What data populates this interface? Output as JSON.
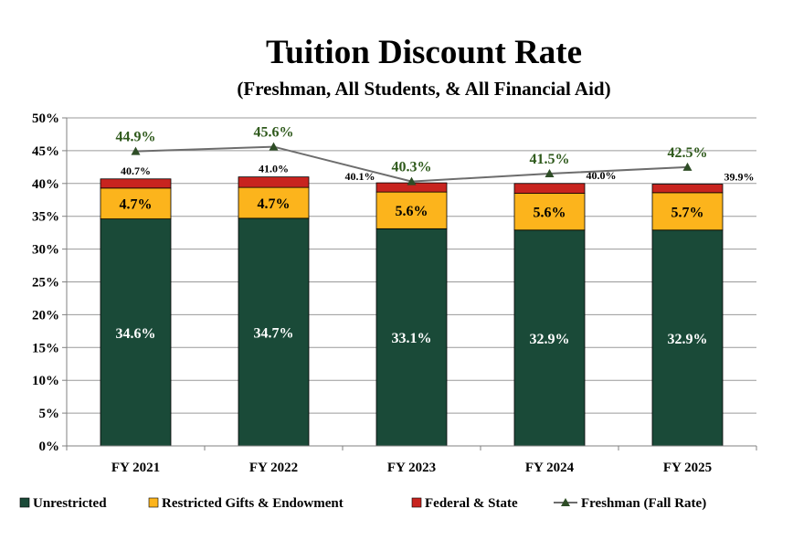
{
  "chart_data": {
    "type": "bar",
    "stacked": true,
    "title": "Tuition Discount Rate",
    "subtitle": "(Freshman, All Students, & All Financial Aid)",
    "categories": [
      "FY 2021",
      "FY 2022",
      "FY 2023",
      "FY 2024",
      "FY 2025"
    ],
    "ylim": [
      0,
      50
    ],
    "yticks": [
      "0%",
      "5%",
      "10%",
      "15%",
      "20%",
      "25%",
      "30%",
      "35%",
      "40%",
      "45%",
      "50%"
    ],
    "grid": true,
    "legend_position": "bottom",
    "series": [
      {
        "name": "Unrestricted",
        "color": "#1a4a38",
        "label_color": "#ffffff",
        "values": [
          34.6,
          34.7,
          33.1,
          32.9,
          32.9
        ],
        "labels": [
          "34.6%",
          "34.7%",
          "33.1%",
          "32.9%",
          "32.9%"
        ]
      },
      {
        "name": "Restricted Gifts & Endowment",
        "color": "#fcb41c",
        "label_color": "#000000",
        "values": [
          4.7,
          4.7,
          5.6,
          5.6,
          5.7
        ],
        "labels": [
          "4.7%",
          "4.7%",
          "5.6%",
          "5.6%",
          "5.7%"
        ]
      },
      {
        "name": "Federal & State",
        "color": "#c8241f",
        "values": [
          1.4,
          1.6,
          1.4,
          1.5,
          1.3
        ]
      }
    ],
    "totals": {
      "values": [
        40.7,
        41.0,
        40.1,
        40.0,
        39.9
      ],
      "labels": [
        "40.7%",
        "41.0%",
        "40.1%",
        "40.0%",
        "39.9%"
      ]
    },
    "line_series": {
      "name": "Freshman (Fall Rate)",
      "type": "line",
      "line_color": "#6d6d6d",
      "marker_color": "#2e4d26",
      "label_color": "#2f5a1c",
      "values": [
        44.9,
        45.6,
        40.3,
        41.5,
        42.5
      ],
      "labels": [
        "44.9%",
        "45.6%",
        "40.3%",
        "41.5%",
        "42.5%"
      ]
    }
  }
}
